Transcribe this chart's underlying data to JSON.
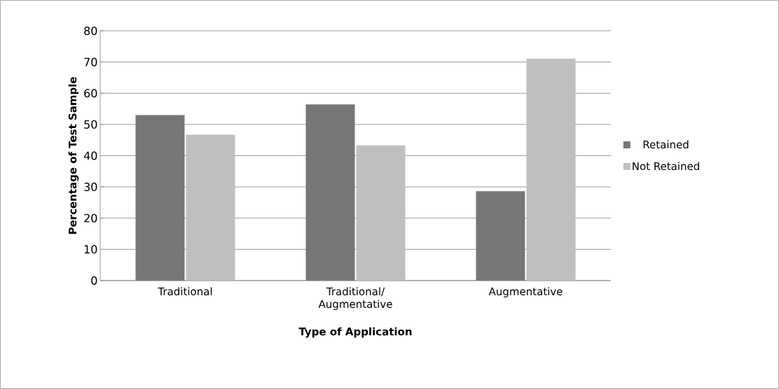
{
  "chart_data": {
    "type": "bar",
    "xlabel": "Type of Application",
    "ylabel": "Percentage of Test Sample",
    "categories": [
      "Traditional",
      "Traditional/ Augmentative",
      "Augmentative"
    ],
    "series": [
      {
        "name": "Retained",
        "color": "#767676",
        "values": [
          53,
          56.4,
          28.6
        ]
      },
      {
        "name": "Not Retained",
        "color": "#bfbfbf",
        "values": [
          46.7,
          43.3,
          71.1
        ]
      }
    ],
    "ylim": [
      0,
      80
    ],
    "yticks": [
      0,
      10,
      20,
      30,
      40,
      50,
      60,
      70,
      80
    ],
    "grid": "y",
    "legend": "right"
  }
}
